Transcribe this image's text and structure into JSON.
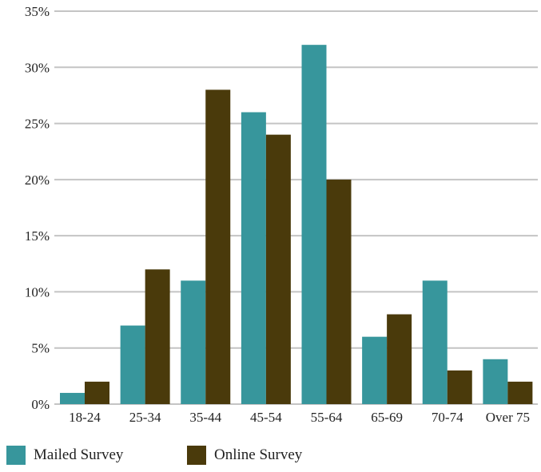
{
  "chart_data": {
    "type": "bar",
    "title": "",
    "xlabel": "",
    "ylabel": "",
    "categories": [
      "18-24",
      "25-34",
      "35-44",
      "45-54",
      "55-64",
      "65-69",
      "70-74",
      "Over 75"
    ],
    "series": [
      {
        "name": "Mailed Survey",
        "color": "#37969c",
        "values": [
          1,
          7,
          11,
          26,
          32,
          6,
          11,
          4
        ]
      },
      {
        "name": "Online Survey",
        "color": "#4a3a0b",
        "values": [
          2,
          12,
          28,
          24,
          20,
          8,
          3,
          2
        ]
      }
    ],
    "ylim": [
      0,
      35
    ],
    "yticks": [
      0,
      5,
      10,
      15,
      20,
      25,
      30,
      35
    ],
    "ytick_labels": [
      "0%",
      "5%",
      "10%",
      "15%",
      "20%",
      "25%",
      "30%",
      "35%"
    ],
    "grid": true,
    "grid_color": "#c4c4c4",
    "legend_position": "bottom-left"
  }
}
